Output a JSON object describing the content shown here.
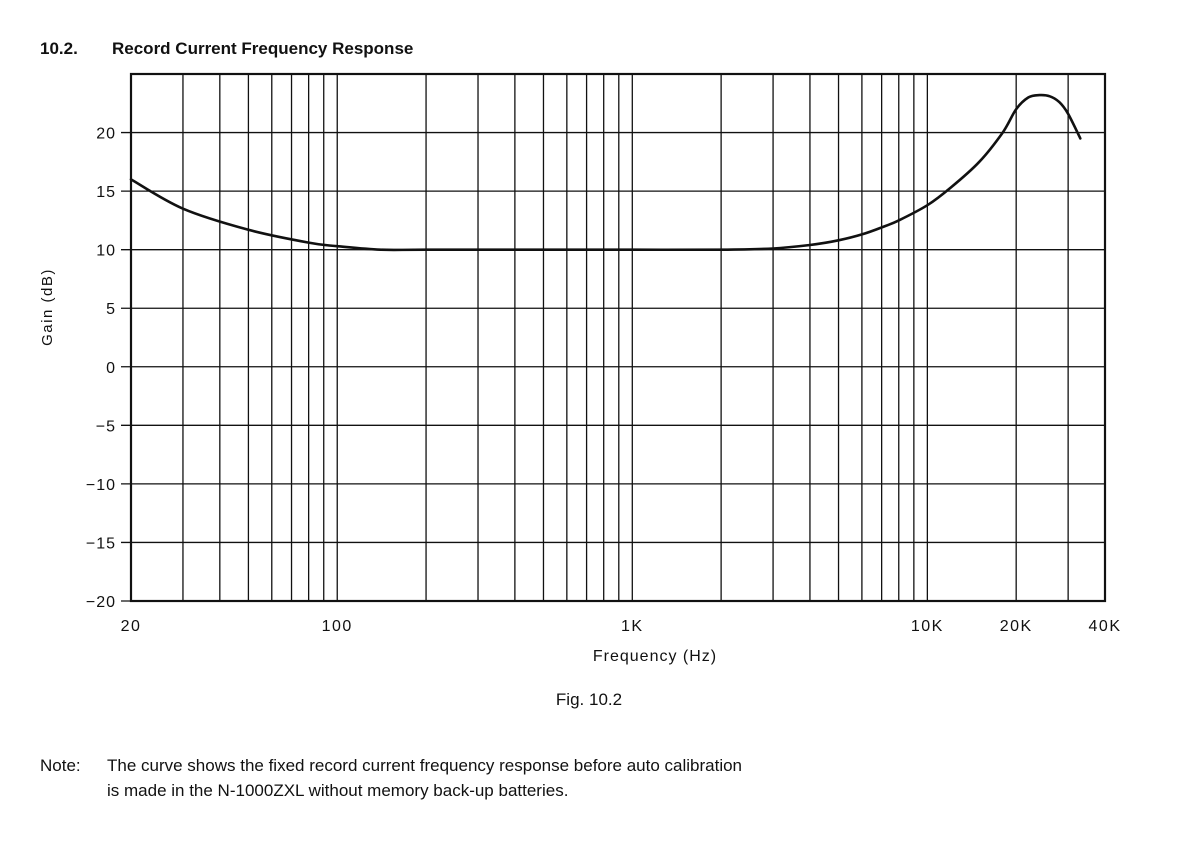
{
  "section": {
    "number": "10.2.",
    "title": "Record Current Frequency Response"
  },
  "chart_data": {
    "type": "line",
    "x_scale": "log",
    "xlim": [
      20,
      40000
    ],
    "ylim": [
      -20,
      25
    ],
    "ylabel": "Gain (dB)",
    "xlabel": "Frequency (Hz)",
    "grid": true,
    "x_ticks": [
      {
        "value": 20,
        "label": "20"
      },
      {
        "value": 100,
        "label": "100"
      },
      {
        "value": 1000,
        "label": "1K"
      },
      {
        "value": 10000,
        "label": "10K"
      },
      {
        "value": 20000,
        "label": "20K"
      },
      {
        "value": 40000,
        "label": "40K"
      }
    ],
    "y_ticks": [
      20,
      15,
      10,
      5,
      0,
      -5,
      -10,
      -15,
      -20
    ],
    "series": [
      {
        "x": [
          20,
          30,
          50,
          80,
          100,
          140,
          200,
          500,
          1000,
          2000,
          3000,
          4000,
          5000,
          6000,
          7000,
          8000,
          10000,
          12000,
          15000,
          18000,
          20000,
          22000,
          24000,
          26000,
          28000,
          30000,
          33000
        ],
        "y": [
          16.0,
          13.5,
          11.7,
          10.6,
          10.3,
          10.0,
          10.0,
          10.0,
          10.0,
          10.0,
          10.1,
          10.4,
          10.8,
          11.3,
          11.9,
          12.5,
          13.8,
          15.3,
          17.5,
          20.0,
          22.0,
          23.0,
          23.2,
          23.1,
          22.6,
          21.6,
          19.5
        ]
      }
    ]
  },
  "figure_caption": "Fig. 10.2",
  "note": {
    "label": "Note:",
    "line1": "The curve shows the fixed record current frequency response before auto calibration",
    "line2": "is made in the N-1000ZXL without memory back-up batteries."
  }
}
